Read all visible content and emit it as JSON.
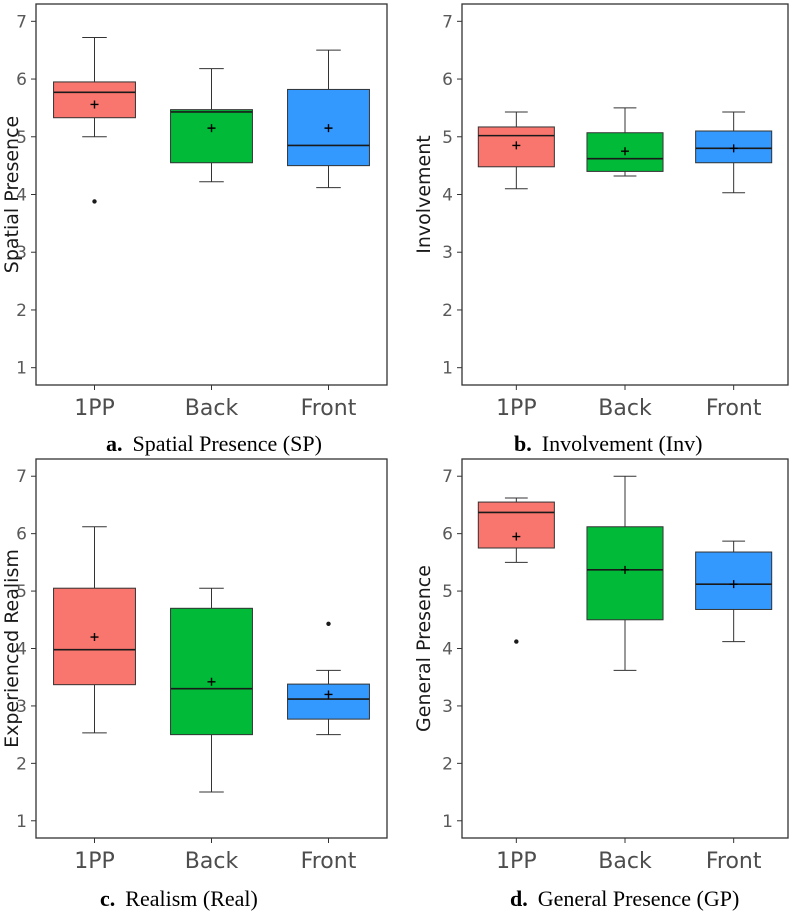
{
  "colors": {
    "1PP": "#f8766d",
    "Back": "#00ba38",
    "Front": "#3399ff",
    "frame": "#333333",
    "tick": "#595959"
  },
  "chart_data": [
    {
      "type": "boxplot",
      "panel": "a",
      "caption_letter": "a.",
      "caption_text": "Spatial Presence (SP)",
      "ylabel": "Spatial Presence",
      "xlabel": "",
      "ylim": [
        0.7,
        7.3
      ],
      "yticks": [
        "1",
        "2",
        "3",
        "4",
        "5",
        "6",
        "7"
      ],
      "categories": [
        "1PP",
        "Back",
        "Front"
      ],
      "boxes": [
        {
          "category": "1PP",
          "min": 5.0,
          "q1": 5.33,
          "median": 5.77,
          "q3": 5.95,
          "max": 6.72,
          "mean": 5.56,
          "outliers": [
            3.88
          ]
        },
        {
          "category": "Back",
          "min": 4.22,
          "q1": 4.55,
          "median": 5.43,
          "q3": 5.47,
          "max": 6.18,
          "mean": 5.15,
          "outliers": []
        },
        {
          "category": "Front",
          "min": 4.12,
          "q1": 4.5,
          "median": 4.85,
          "q3": 5.82,
          "max": 6.5,
          "mean": 5.15,
          "outliers": []
        }
      ]
    },
    {
      "type": "boxplot",
      "panel": "b",
      "caption_letter": "b.",
      "caption_text": "Involvement (Inv)",
      "ylabel": "Involvement",
      "xlabel": "",
      "ylim": [
        0.7,
        7.3
      ],
      "yticks": [
        "1",
        "2",
        "3",
        "4",
        "5",
        "6",
        "7"
      ],
      "categories": [
        "1PP",
        "Back",
        "Front"
      ],
      "boxes": [
        {
          "category": "1PP",
          "min": 4.1,
          "q1": 4.48,
          "median": 5.02,
          "q3": 5.17,
          "max": 5.43,
          "mean": 4.85,
          "outliers": []
        },
        {
          "category": "Back",
          "min": 4.32,
          "q1": 4.4,
          "median": 4.62,
          "q3": 5.07,
          "max": 5.5,
          "mean": 4.75,
          "outliers": []
        },
        {
          "category": "Front",
          "min": 4.03,
          "q1": 4.55,
          "median": 4.8,
          "q3": 5.1,
          "max": 5.43,
          "mean": 4.8,
          "outliers": []
        }
      ]
    },
    {
      "type": "boxplot",
      "panel": "c",
      "caption_letter": "c.",
      "caption_text": "Realism (Real)",
      "ylabel": "Experienced Realism",
      "xlabel": "",
      "ylim": [
        0.7,
        7.3
      ],
      "yticks": [
        "1",
        "2",
        "3",
        "4",
        "5",
        "6",
        "7"
      ],
      "categories": [
        "1PP",
        "Back",
        "Front"
      ],
      "boxes": [
        {
          "category": "1PP",
          "min": 2.53,
          "q1": 3.37,
          "median": 3.98,
          "q3": 5.05,
          "max": 6.12,
          "mean": 4.2,
          "outliers": []
        },
        {
          "category": "Back",
          "min": 1.5,
          "q1": 2.5,
          "median": 3.3,
          "q3": 4.7,
          "max": 5.05,
          "mean": 3.42,
          "outliers": []
        },
        {
          "category": "Front",
          "min": 2.5,
          "q1": 2.77,
          "median": 3.12,
          "q3": 3.38,
          "max": 3.62,
          "mean": 3.2,
          "outliers": [
            4.43
          ]
        }
      ]
    },
    {
      "type": "boxplot",
      "panel": "d",
      "caption_letter": "d.",
      "caption_text": "General Presence (GP)",
      "ylabel": "General Presence",
      "xlabel": "",
      "ylim": [
        0.7,
        7.3
      ],
      "yticks": [
        "1",
        "2",
        "3",
        "4",
        "5",
        "6",
        "7"
      ],
      "categories": [
        "1PP",
        "Back",
        "Front"
      ],
      "boxes": [
        {
          "category": "1PP",
          "min": 5.5,
          "q1": 5.75,
          "median": 6.37,
          "q3": 6.55,
          "max": 6.62,
          "mean": 5.95,
          "outliers": [
            4.12
          ]
        },
        {
          "category": "Back",
          "min": 3.62,
          "q1": 4.5,
          "median": 5.37,
          "q3": 6.12,
          "max": 7.0,
          "mean": 5.37,
          "outliers": []
        },
        {
          "category": "Front",
          "min": 4.12,
          "q1": 4.68,
          "median": 5.12,
          "q3": 5.68,
          "max": 5.87,
          "mean": 5.12,
          "outliers": []
        }
      ]
    }
  ]
}
